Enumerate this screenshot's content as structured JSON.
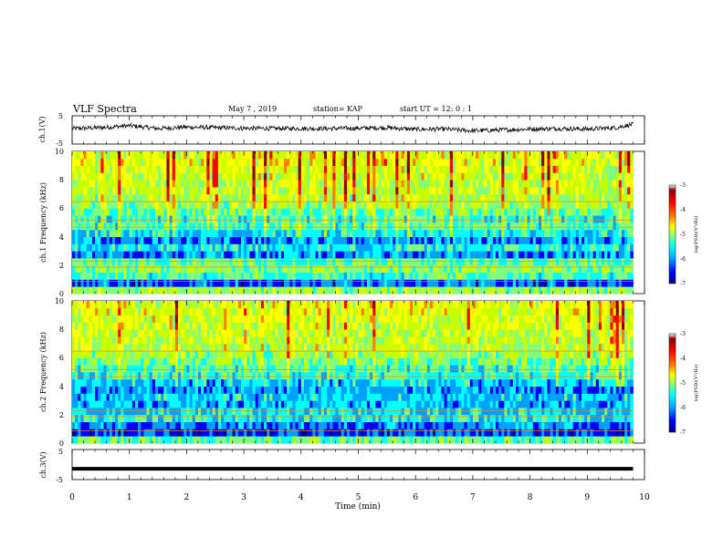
{
  "header": {
    "title": "VLF Spectra",
    "date": "May 7 , 2019",
    "station": "station= KAP",
    "start": "start UT = 12: 0 : 1"
  },
  "colors": {
    "spectrogram": [
      "#00007f",
      "#0000ff",
      "#00a0ff",
      "#00ffff",
      "#7fff7f",
      "#c8ff00",
      "#ffff00",
      "#ff8000",
      "#ff0000",
      "#8b0000"
    ],
    "trace": "#000000"
  },
  "chart_data": [
    {
      "type": "line",
      "ylabel": "ch.1(V)",
      "ylim": [
        -5,
        5
      ],
      "yticks": [
        "5",
        "-5"
      ],
      "xlim": [
        0,
        10
      ],
      "x": [
        0,
        0.5,
        1,
        1.5,
        2,
        2.5,
        3,
        3.5,
        4,
        4.5,
        5,
        5.5,
        6,
        6.5,
        7,
        7.5,
        8,
        8.5,
        9,
        9.5,
        9.8
      ],
      "y": [
        0.5,
        0.8,
        1.5,
        0.5,
        1.0,
        0.8,
        0.6,
        0.5,
        0.5,
        0.5,
        0.6,
        0.8,
        0.2,
        0.3,
        -0.3,
        0.0,
        0.3,
        0.5,
        0.3,
        0.8,
        2.0
      ]
    },
    {
      "type": "heatmap",
      "ylabel": "ch.1 Frequency (kHz)",
      "ylim": [
        0,
        10
      ],
      "yticks": [
        "0",
        "2",
        "4",
        "6",
        "8",
        "10"
      ],
      "xlim": [
        0,
        9.8
      ],
      "colorbar": {
        "label": "log(PSD)(V²/Hz)",
        "range": [
          -7,
          -3
        ],
        "ticks": [
          "-3",
          "-4",
          "-5",
          "-6",
          "-7"
        ]
      },
      "freq_khz": [
        0.25,
        0.75,
        1.25,
        1.75,
        2.25,
        2.75,
        3.25,
        3.75,
        4.25,
        4.75,
        5.25,
        5.75,
        6.25,
        6.75,
        7.25,
        7.75,
        8.25,
        8.75,
        9.25,
        9.75
      ],
      "mean_log_psd": [
        -5.0,
        -6.2,
        -5.4,
        -5.1,
        -5.3,
        -6.0,
        -5.6,
        -6.0,
        -5.7,
        -5.4,
        -5.5,
        -5.3,
        -5.0,
        -4.9,
        -4.8,
        -4.8,
        -4.7,
        -4.7,
        -4.6,
        -4.6
      ]
    },
    {
      "type": "heatmap",
      "ylabel": "ch.2 Frequency (kHz)",
      "ylim": [
        0,
        10
      ],
      "yticks": [
        "0",
        "2",
        "4",
        "6",
        "8",
        "10"
      ],
      "xlim": [
        0,
        9.8
      ],
      "colorbar": {
        "label": "log(PSD)(V²/Hz)",
        "range": [
          -7,
          -3
        ],
        "ticks": [
          "-3",
          "-4",
          "-5",
          "-6",
          "-7"
        ]
      },
      "freq_khz": [
        0.25,
        0.75,
        1.25,
        1.75,
        2.25,
        2.75,
        3.25,
        3.75,
        4.25,
        4.75,
        5.25,
        5.75,
        6.25,
        6.75,
        7.25,
        7.75,
        8.25,
        8.75,
        9.25,
        9.75
      ],
      "mean_log_psd": [
        -5.3,
        -6.3,
        -6.1,
        -5.6,
        -5.7,
        -5.9,
        -5.8,
        -6.0,
        -5.8,
        -5.5,
        -5.4,
        -5.2,
        -5.0,
        -4.9,
        -4.8,
        -4.8,
        -4.7,
        -4.7,
        -4.6,
        -4.6
      ]
    },
    {
      "type": "line",
      "ylabel": "ch.3(V)",
      "ylim": [
        -5,
        5
      ],
      "yticks": [
        "5",
        "-5"
      ],
      "xlim": [
        0,
        10
      ],
      "xlabel": "Time (min)",
      "xticks": [
        "0",
        "1",
        "2",
        "3",
        "4",
        "5",
        "6",
        "7",
        "8",
        "9",
        "10"
      ],
      "x": [
        0,
        9.8
      ],
      "y": [
        -1.4,
        -1.4
      ]
    }
  ]
}
